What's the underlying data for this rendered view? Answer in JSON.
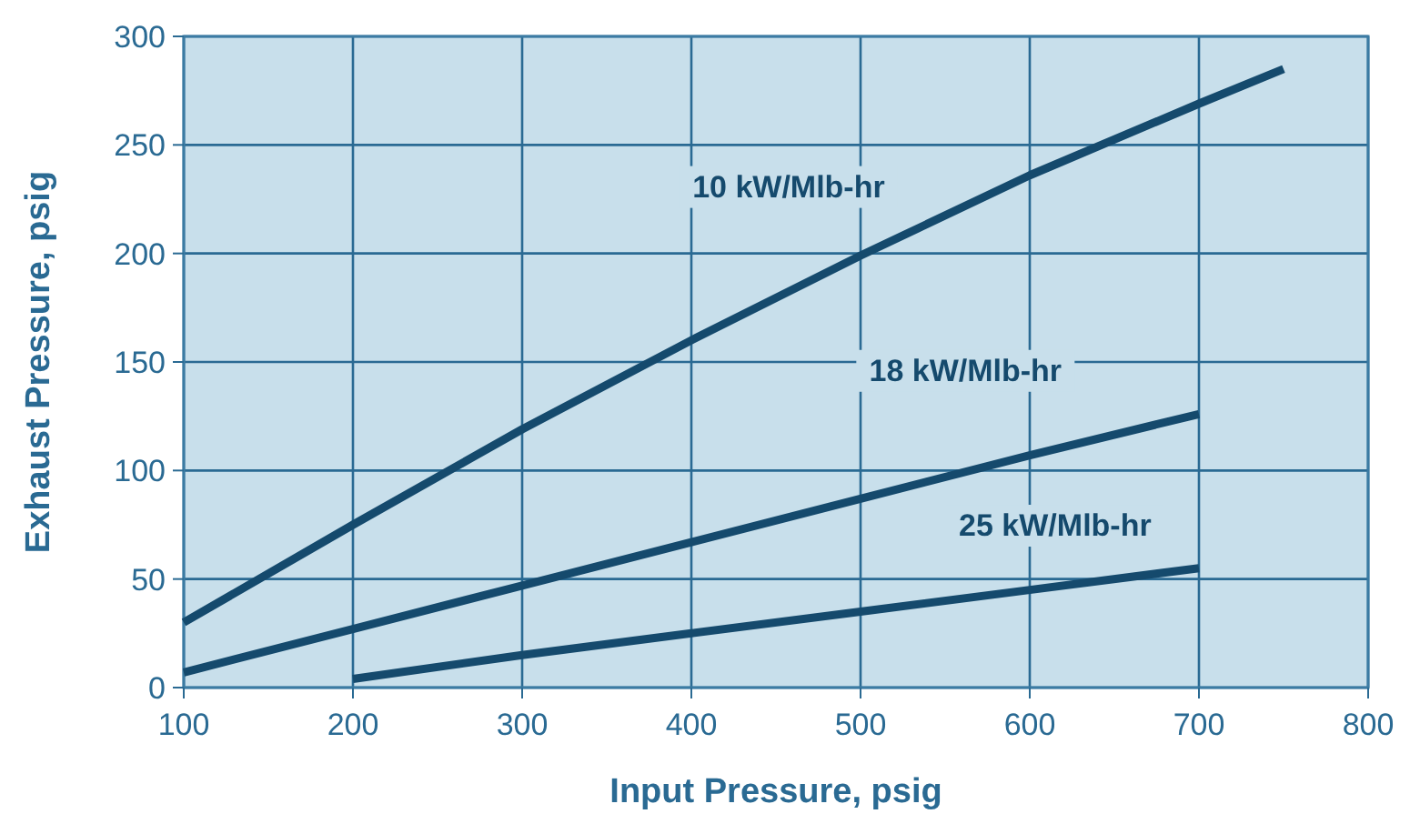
{
  "chart_data": {
    "type": "line",
    "xlabel": "Input Pressure, psig",
    "ylabel": "Exhaust Pressure, psig",
    "xlim": [
      100,
      800
    ],
    "xticks": [
      100,
      200,
      300,
      400,
      500,
      600,
      700,
      800
    ],
    "ylim": [
      0,
      300
    ],
    "yticks": [
      0,
      50,
      100,
      150,
      200,
      250,
      300
    ],
    "grid": true,
    "series": [
      {
        "name": "10 kW/Mlb-hr",
        "color": "#154a6d",
        "x": [
          100,
          200,
          300,
          400,
          500,
          600,
          700,
          750
        ],
        "values": [
          30,
          75,
          119,
          160,
          199,
          236,
          269,
          285
        ]
      },
      {
        "name": "18 kW/Mlb-hr",
        "color": "#154a6d",
        "x": [
          100,
          200,
          300,
          400,
          500,
          600,
          700
        ],
        "values": [
          7,
          27,
          47,
          67,
          87,
          107,
          126
        ]
      },
      {
        "name": "25 kW/Mlb-hr",
        "color": "#154a6d",
        "x": [
          200,
          300,
          400,
          500,
          600,
          700
        ],
        "values": [
          4,
          15,
          25,
          35,
          45,
          55
        ]
      }
    ]
  }
}
